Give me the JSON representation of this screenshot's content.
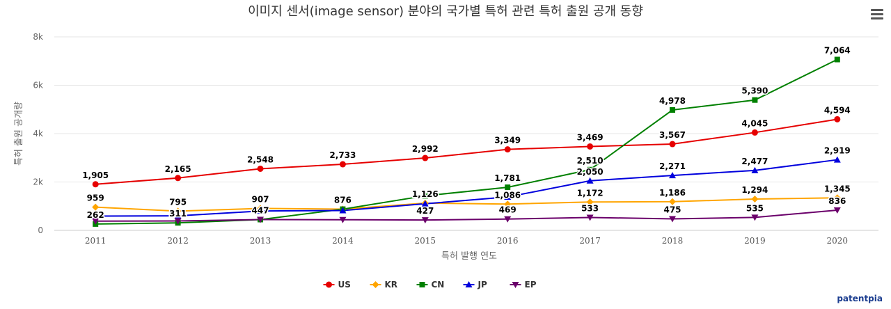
{
  "chart_data": {
    "type": "line",
    "title": "이미지 센서(image sensor) 분야의 국가별 특허 관련 특허 출원 공개 동향",
    "xlabel": "특허 발행 연도",
    "ylabel": "특허 출원 공개량",
    "categories": [
      "2011",
      "2012",
      "2013",
      "2014",
      "2015",
      "2016",
      "2017",
      "2018",
      "2019",
      "2020"
    ],
    "ylim": [
      0,
      8000
    ],
    "yticks": [
      0,
      2000,
      4000,
      6000,
      8000
    ],
    "ytick_labels": [
      "0",
      "2k",
      "4k",
      "6k",
      "8k"
    ],
    "grid": true,
    "legend_position": "bottom-center",
    "series": [
      {
        "name": "US",
        "color": "#e60000",
        "marker": "circle",
        "values": [
          1905,
          2165,
          2548,
          2733,
          2992,
          3349,
          3469,
          3567,
          4045,
          4594
        ],
        "labels": [
          "1,905",
          "2,165",
          "2,548",
          "2,733",
          "2,992",
          "3,349",
          "3,469",
          "3,567",
          "4,045",
          "4,594"
        ]
      },
      {
        "name": "KR",
        "color": "#ffa500",
        "marker": "diamond",
        "values": [
          959,
          795,
          907,
          876,
          1126,
          1086,
          1172,
          1186,
          1294,
          1345
        ],
        "labels": [
          "959",
          "795",
          "907",
          "876",
          "1,126",
          "1,086",
          "1,172",
          "1,186",
          "1,294",
          "1,345"
        ]
      },
      {
        "name": "CN",
        "color": "#008000",
        "marker": "square",
        "values": [
          262,
          311,
          447,
          876,
          1430,
          1781,
          2510,
          4978,
          5390,
          7064
        ],
        "labels": [
          "262",
          "311",
          "447",
          "",
          "",
          "1,781",
          "2,510",
          "4,978",
          "5,390",
          "7,064"
        ]
      },
      {
        "name": "JP",
        "color": "#0000dd",
        "marker": "triangle",
        "values": [
          590,
          600,
          800,
          820,
          1100,
          1380,
          2050,
          2271,
          2477,
          2919
        ],
        "labels": [
          "",
          "",
          "",
          "",
          "",
          "",
          "2,050",
          "2,271",
          "2,477",
          "2,919"
        ]
      },
      {
        "name": "EP",
        "color": "#6b006b",
        "marker": "triangle-down",
        "values": [
          380,
          390,
          447,
          440,
          427,
          469,
          533,
          475,
          535,
          836
        ],
        "labels": [
          "",
          "",
          "",
          "",
          "427",
          "469",
          "533",
          "475",
          "535",
          "836"
        ]
      }
    ]
  },
  "credit": "patentpia",
  "menu_icon": "hamburger-menu-icon"
}
